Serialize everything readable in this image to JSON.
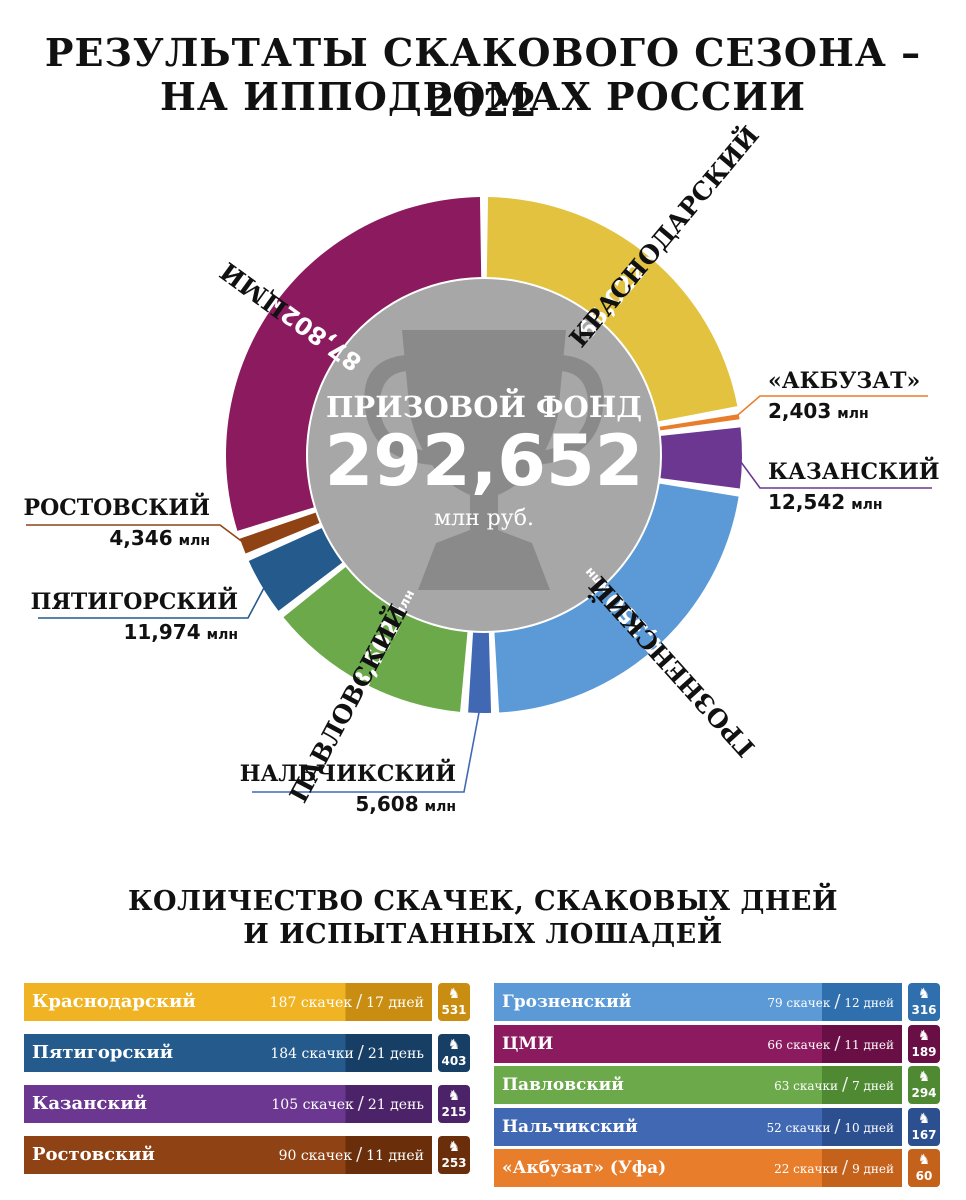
{
  "title_line1": "РЕЗУЛЬТАТЫ СКАКОВОГО СЕЗОНА – 2022",
  "title_line2": "НА ИППОДРОМАХ РОССИИ",
  "center": {
    "label": "ПРИЗОВОЙ ФОНД",
    "value": "292,652",
    "unit": "млн руб."
  },
  "unit_short": "млн",
  "chart_data": {
    "type": "pie",
    "title": "ПРИЗОВОЙ ФОНД",
    "total": "292,652",
    "unit": "млн руб.",
    "slices": [
      {
        "name": "КРАСНОДАРСКИЙ",
        "value": 65.022,
        "label": "65,022",
        "color": "#e2c23e"
      },
      {
        "name": "«АКБУЗАТ»",
        "value": 2.403,
        "label": "2,403",
        "color": "#e87d2c"
      },
      {
        "name": "КАЗАНСКИЙ",
        "value": 12.542,
        "label": "12,542",
        "color": "#6b3790"
      },
      {
        "name": "ГРОЗНЕНСКИЙ",
        "value": 64.35,
        "label": "64,350",
        "color": "#5b9ad6"
      },
      {
        "name": "НАЛЬЧИКСКИЙ",
        "value": 5.608,
        "label": "5,608",
        "color": "#4169b3"
      },
      {
        "name": "ПАВЛОВСКИЙ",
        "value": 38.602,
        "label": "38,602",
        "color": "#6ba94a"
      },
      {
        "name": "ПЯТИГОРСКИЙ",
        "value": 11.974,
        "label": "11,974",
        "color": "#245a8c"
      },
      {
        "name": "РОСТОВСКИЙ",
        "value": 4.346,
        "label": "4,346",
        "color": "#8f4315"
      },
      {
        "name": "ЦМИ",
        "value": 87.802,
        "label": "87,802",
        "color": "#8c1a5e"
      }
    ]
  },
  "subtitle_line1": "КОЛИЧЕСТВО СКАЧЕК, СКАКОВЫХ ДНЕЙ",
  "subtitle_line2": "И ИСПЫТАННЫХ ЛОШАДЕЙ",
  "table_left": [
    {
      "name": "Краснодарский",
      "races": "187 скачек",
      "days": "17 дней",
      "horses": "531",
      "color": "#f0b323",
      "dark": "#c98d12"
    },
    {
      "name": "Пятигорский",
      "races": "184 скачки",
      "days": "21 день",
      "horses": "403",
      "color": "#245a8c",
      "dark": "#173f66"
    },
    {
      "name": "Казанский",
      "races": "105 скачек",
      "days": "21 день",
      "horses": "215",
      "color": "#6b3790",
      "dark": "#4c2368"
    },
    {
      "name": "Ростовский",
      "races": "90 скачек",
      "days": "11 дней",
      "horses": "253",
      "color": "#8f4315",
      "dark": "#6a2e0b"
    }
  ],
  "table_right": [
    {
      "name": "Грозненский",
      "races": "79 скачек",
      "days": "12 дней",
      "horses": "316",
      "color": "#5b9ad6",
      "dark": "#2f6fad"
    },
    {
      "name": "ЦМИ",
      "races": "66 скачек",
      "days": "11 дней",
      "horses": "189",
      "color": "#8c1a5e",
      "dark": "#6a0f45"
    },
    {
      "name": "Павловский",
      "races": "63 скачки",
      "days": "7 дней",
      "horses": "294",
      "color": "#6ba94a",
      "dark": "#4f8a33"
    },
    {
      "name": "Нальчикский",
      "races": "52 скачки",
      "days": "10 дней",
      "horses": "167",
      "color": "#4169b3",
      "dark": "#2b4f8f"
    },
    {
      "name": "«Акбузат» (Уфа)",
      "races": "22 скачки",
      "days": "9 дней",
      "horses": "60",
      "color": "#e87d2c",
      "dark": "#c4611a"
    }
  ]
}
